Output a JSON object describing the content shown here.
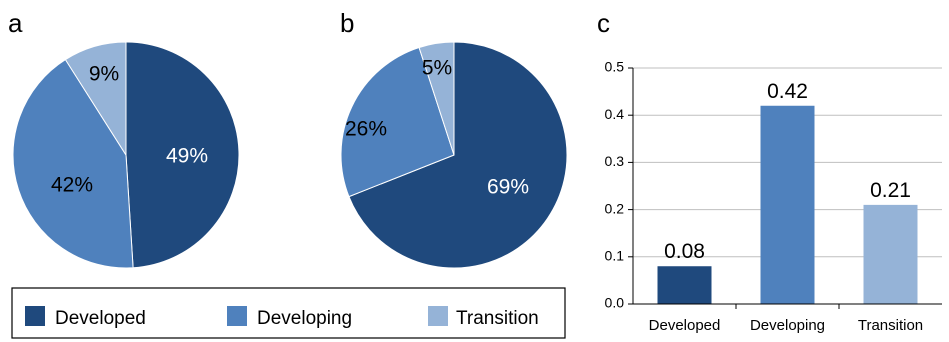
{
  "colors": {
    "developed": "#1f497d",
    "developing": "#4f81bd",
    "transition": "#95b3d7"
  },
  "legend": [
    "Developed",
    "Developing",
    "Transition"
  ],
  "chart_data": [
    {
      "type": "pie",
      "panel": "a",
      "slices": [
        {
          "category": "Developed",
          "value": 49,
          "label": "49%"
        },
        {
          "category": "Developing",
          "value": 42,
          "label": "42%"
        },
        {
          "category": "Transition",
          "value": 9,
          "label": "9%"
        }
      ]
    },
    {
      "type": "pie",
      "panel": "b",
      "slices": [
        {
          "category": "Developed",
          "value": 69,
          "label": "69%"
        },
        {
          "category": "Developing",
          "value": 26,
          "label": "26%"
        },
        {
          "category": "Transition",
          "value": 5,
          "label": "5%"
        }
      ]
    },
    {
      "type": "bar",
      "panel": "c",
      "categories": [
        "Developed",
        "Developing",
        "Transition"
      ],
      "values": [
        0.08,
        0.42,
        0.21
      ],
      "value_labels": [
        "0.08",
        "0.42",
        "0.21"
      ],
      "ylim": [
        0,
        0.5
      ],
      "yticks": [
        "0.0",
        "0.1",
        "0.2",
        "0.3",
        "0.4",
        "0.5"
      ],
      "grid": true
    }
  ]
}
